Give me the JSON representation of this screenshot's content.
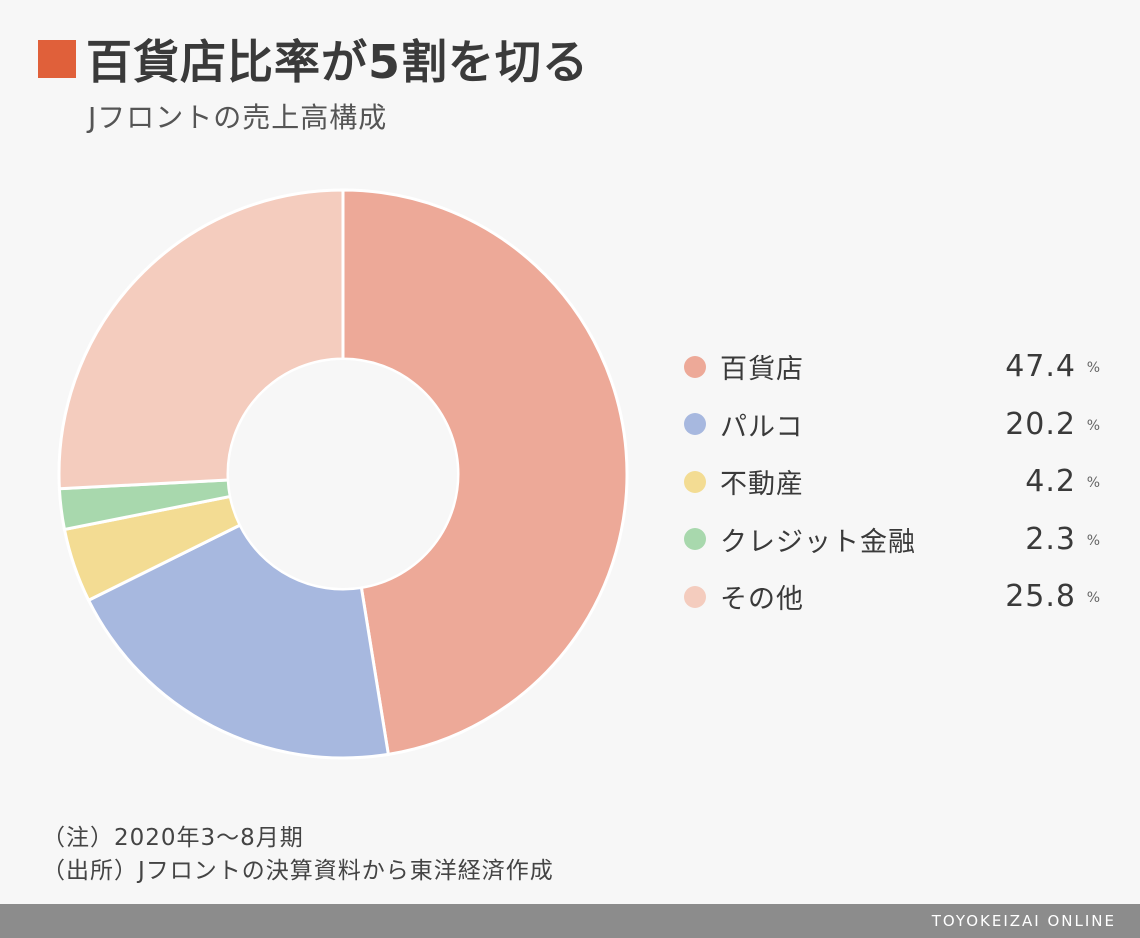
{
  "header": {
    "title": "百貨店比率が5割を切る",
    "subtitle": "Jフロントの売上高構成"
  },
  "chart_data": {
    "type": "pie",
    "variant": "donut",
    "title": "百貨店比率が5割を切る",
    "subtitle": "Jフロントの売上高構成",
    "unit": "%",
    "categories": [
      "百貨店",
      "パルコ",
      "不動産",
      "クレジット金融",
      "その他"
    ],
    "values": [
      47.4,
      20.2,
      4.2,
      2.3,
      25.8
    ],
    "colors": [
      "#eda998",
      "#a7b8df",
      "#f3dc93",
      "#a8d8ad",
      "#f4ccbe"
    ],
    "legend_position": "right"
  },
  "legend": [
    {
      "label": "百貨店",
      "value": "47.4",
      "unit": "%",
      "color": "#eda998"
    },
    {
      "label": "パルコ",
      "value": "20.2",
      "unit": "%",
      "color": "#a7b8df"
    },
    {
      "label": "不動産",
      "value": "4.2",
      "unit": "%",
      "color": "#f3dc93"
    },
    {
      "label": "クレジット金融",
      "value": "2.3",
      "unit": "%",
      "color": "#a8d8ad"
    },
    {
      "label": "その他",
      "value": "25.8",
      "unit": "%",
      "color": "#f4ccbe"
    }
  ],
  "notes": {
    "note": "（注）2020年3～8月期",
    "source": "（出所）Jフロントの決算資料から東洋経済作成"
  },
  "footer": {
    "brand": "TOYOKEIZAI ONLINE"
  }
}
